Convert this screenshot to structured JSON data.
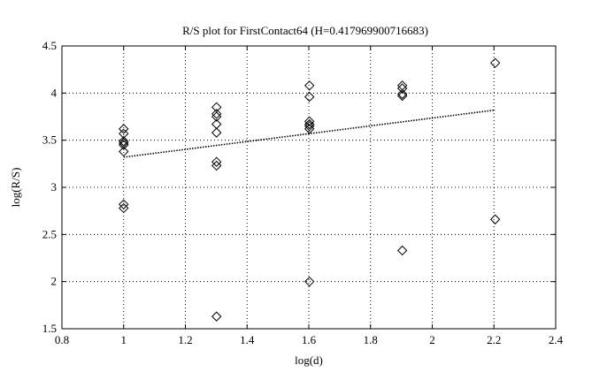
{
  "chart_data": {
    "type": "scatter",
    "title": "R/S plot for FirstContact64 (H=0.417969900716683)",
    "xlabel": "log(d)",
    "ylabel": "log(R/S)",
    "xlim": [
      0.8,
      2.4
    ],
    "ylim": [
      1.5,
      4.5
    ],
    "x_ticks": [
      0.8,
      1,
      1.2,
      1.4,
      1.6,
      1.8,
      2,
      2.2,
      2.4
    ],
    "y_ticks": [
      1.5,
      2,
      2.5,
      3,
      3.5,
      4,
      4.5
    ],
    "x_tick_labels": [
      "0.8",
      "1",
      "1.2",
      "1.4",
      "1.6",
      "1.8",
      "2",
      "2.2",
      "2.4"
    ],
    "y_tick_labels": [
      "1.5",
      "2",
      "2.5",
      "3",
      "3.5",
      "4",
      "4.5"
    ],
    "grid": true,
    "marker": "diamond",
    "points": [
      {
        "x": 1.0,
        "y": 3.62
      },
      {
        "x": 1.0,
        "y": 3.57
      },
      {
        "x": 1.0,
        "y": 3.49
      },
      {
        "x": 1.0,
        "y": 3.47
      },
      {
        "x": 1.0,
        "y": 3.45
      },
      {
        "x": 1.0,
        "y": 3.38
      },
      {
        "x": 1.0,
        "y": 2.82
      },
      {
        "x": 1.0,
        "y": 2.78
      },
      {
        "x": 1.301,
        "y": 3.85
      },
      {
        "x": 1.301,
        "y": 3.78
      },
      {
        "x": 1.301,
        "y": 3.75
      },
      {
        "x": 1.301,
        "y": 3.67
      },
      {
        "x": 1.301,
        "y": 3.58
      },
      {
        "x": 1.301,
        "y": 3.27
      },
      {
        "x": 1.301,
        "y": 3.23
      },
      {
        "x": 1.301,
        "y": 1.63
      },
      {
        "x": 1.602,
        "y": 4.08
      },
      {
        "x": 1.602,
        "y": 3.96
      },
      {
        "x": 1.602,
        "y": 3.7
      },
      {
        "x": 1.602,
        "y": 3.67
      },
      {
        "x": 1.602,
        "y": 3.65
      },
      {
        "x": 1.602,
        "y": 3.62
      },
      {
        "x": 1.602,
        "y": 2.0
      },
      {
        "x": 1.903,
        "y": 4.08
      },
      {
        "x": 1.903,
        "y": 4.05
      },
      {
        "x": 1.903,
        "y": 3.99
      },
      {
        "x": 1.903,
        "y": 3.97
      },
      {
        "x": 1.903,
        "y": 2.33
      },
      {
        "x": 2.204,
        "y": 4.32
      },
      {
        "x": 2.204,
        "y": 2.66
      }
    ],
    "fit_line": {
      "x": [
        1.0,
        2.204
      ],
      "y": [
        3.32,
        3.82
      ],
      "style": "dotted"
    }
  }
}
